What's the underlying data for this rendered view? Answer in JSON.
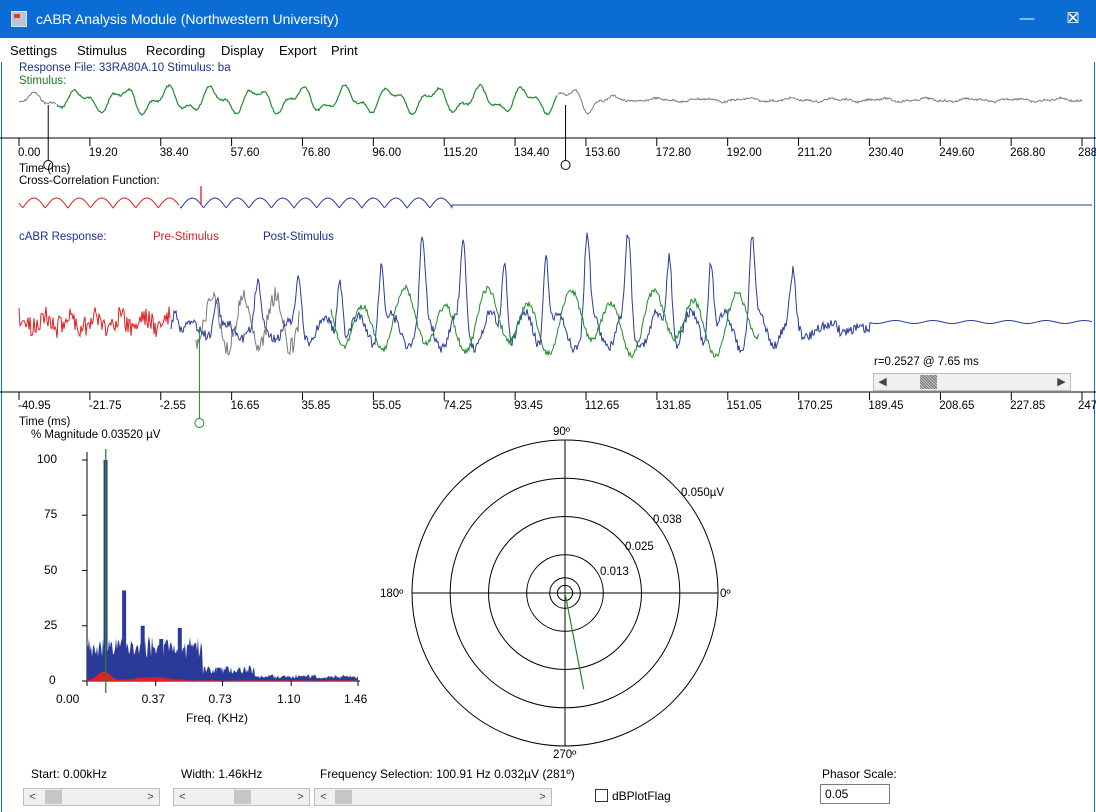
{
  "window": {
    "title": "cABR Analysis Module (Northwestern University)",
    "minimize_glyph": "—",
    "maximize_glyph": "☐",
    "close_glyph": "✕"
  },
  "menu": [
    "Settings",
    "Stimulus",
    "Recording",
    "Display",
    "Export",
    "Print"
  ],
  "stimulus_panel": {
    "file_label": "Response File: 33RA80A.10  Stimulus: ba",
    "stimulus_label": "Stimulus:",
    "axis_label": "Time (ms)",
    "ticks": [
      "0.00",
      "19.20",
      "38.40",
      "57.60",
      "76.80",
      "96.00",
      "115.20",
      "134.40",
      "153.60",
      "172.80",
      "192.00",
      "211.20",
      "230.40",
      "249.60",
      "268.80",
      "288"
    ]
  },
  "xcorr_panel": {
    "label": "Cross-Correlation Function:"
  },
  "response_panel": {
    "label": "cABR Response:",
    "pre_label": "Pre-Stimulus",
    "post_label": "Post-Stimulus",
    "r_readout": "r=0.2527 @  7.65 ms",
    "axis_label": "Time (ms)",
    "ticks": [
      "-40.95",
      "-21.75",
      "-2.55",
      "16.65",
      "35.85",
      "55.05",
      "74.25",
      "93.45",
      "112.65",
      "131.85",
      "151.05",
      "170.25",
      "189.45",
      "208.65",
      "227.85",
      "247"
    ]
  },
  "spectrum_panel": {
    "ylabel": "% Magnitude  0.03520 µV",
    "yticks": [
      "100",
      "75",
      "50",
      "25",
      "0"
    ],
    "xticks": [
      "0.00",
      "0.37",
      "0.73",
      "1.10",
      "1.46"
    ],
    "xlabel": "Freq.  (KHz)"
  },
  "polar_panel": {
    "angle_labels": {
      "top": "90º",
      "left": "180º",
      "right": "0º",
      "bottom": "270º"
    },
    "ring_labels": [
      "0.013",
      "0.025",
      "0.038",
      "0.050µV"
    ],
    "phasor": {
      "magnitude_uv": 0.032,
      "angle_deg": 281
    }
  },
  "bottom_controls": {
    "start_label": "Start: 0.00kHz",
    "width_label": "Width: 1.46kHz",
    "freq_selection_label": "Frequency Selection:  100.91 Hz   0.032µV (281º)",
    "db_flag_label": "dBPlotFlag",
    "phasor_scale_label": "Phasor Scale:",
    "phasor_scale_value": "0.05",
    "arrow_left": "<",
    "arrow_right": ">"
  },
  "colors": {
    "titlebar": "#0a6cd4",
    "stimulus_gray": "#7a7a7a",
    "stimulus_green": "#1f8a2a",
    "response_blue": "#2a3a9a",
    "pre_red": "#e02020",
    "spectrum_blue": "#2a3a9a"
  },
  "chart_data": [
    {
      "type": "line",
      "title": "Stimulus:",
      "xlabel": "Time (ms)",
      "ylabel": "",
      "xlim": [
        0,
        288
      ],
      "x_ticks": [
        0,
        19.2,
        38.4,
        57.6,
        76.8,
        96,
        115.2,
        134.4,
        153.6,
        172.8,
        192,
        211.2,
        230.4,
        249.6,
        268.8,
        288
      ],
      "selection_ms": [
        9,
        147
      ],
      "grid": false
    },
    {
      "type": "line",
      "title": "cABR Response:",
      "xlabel": "Time (ms)",
      "xlim": [
        -40.95,
        247
      ],
      "x_ticks": [
        -40.95,
        -21.75,
        -2.55,
        16.65,
        35.85,
        55.05,
        74.25,
        93.45,
        112.65,
        131.85,
        151.05,
        170.25,
        189.45,
        208.65,
        227.85,
        247
      ],
      "series": [
        {
          "name": "Pre-Stimulus",
          "x_range": [
            -40.95,
            0
          ]
        },
        {
          "name": "Post-Stimulus",
          "x_range": [
            0,
            247
          ]
        }
      ],
      "correlation": {
        "r": 0.2527,
        "lag_ms": 7.65
      },
      "grid": false
    },
    {
      "type": "bar",
      "title": "% Magnitude  0.03520 µV",
      "xlabel": "Freq.  (KHz)",
      "ylabel": "",
      "xlim": [
        0,
        1.46
      ],
      "ylim": [
        0,
        100
      ],
      "x_ticks": [
        0.0,
        0.37,
        0.73,
        1.1,
        1.46
      ],
      "y_ticks": [
        0,
        25,
        50,
        75,
        100
      ],
      "peaks": [
        {
          "freq_khz": 0.1,
          "value": 100
        },
        {
          "freq_khz": 0.2,
          "value": 41
        },
        {
          "freq_khz": 0.3,
          "value": 25
        },
        {
          "freq_khz": 0.4,
          "value": 19
        },
        {
          "freq_khz": 0.5,
          "value": 24
        },
        {
          "freq_khz": 0.61,
          "value": 8
        },
        {
          "freq_khz": 0.71,
          "value": 6
        },
        {
          "freq_khz": 0.82,
          "value": 4
        }
      ],
      "selected_freq_khz": 0.101,
      "grid": false
    }
  ]
}
